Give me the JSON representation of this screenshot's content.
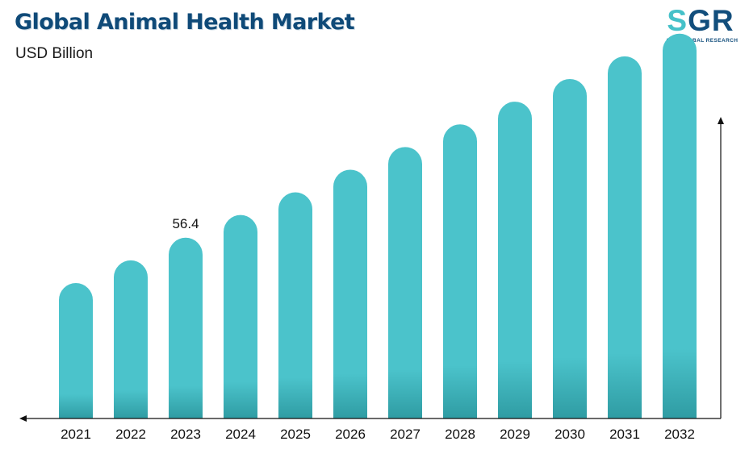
{
  "header": {
    "title": "Global Animal Health Market",
    "subtitle": "USD Billion"
  },
  "logo": {
    "letters": [
      "S",
      "G",
      "R"
    ],
    "tagline": "SAN GLOBAL RESEARCH",
    "accent_color": "#45c1c9",
    "brand_color": "#124e7c"
  },
  "chart_data": {
    "type": "bar",
    "title": "Global Animal Health Market",
    "subtitle": "USD Billion",
    "xlabel": "",
    "ylabel": "",
    "categories": [
      "2021",
      "2022",
      "2023",
      "2024",
      "2025",
      "2026",
      "2027",
      "2028",
      "2029",
      "2030",
      "2031",
      "2032"
    ],
    "values": [
      49.0,
      52.7,
      56.4,
      60.1,
      63.8,
      67.5,
      71.2,
      74.9,
      78.6,
      82.3,
      86.0,
      89.7
    ],
    "data_labels": [
      {
        "category": "2023",
        "text": "56.4"
      }
    ],
    "bar_color": "#4bc3cb",
    "bar_base_color": "#2f9ca3",
    "grid": false,
    "legend": "none",
    "bar_shape": "rounded-top"
  }
}
